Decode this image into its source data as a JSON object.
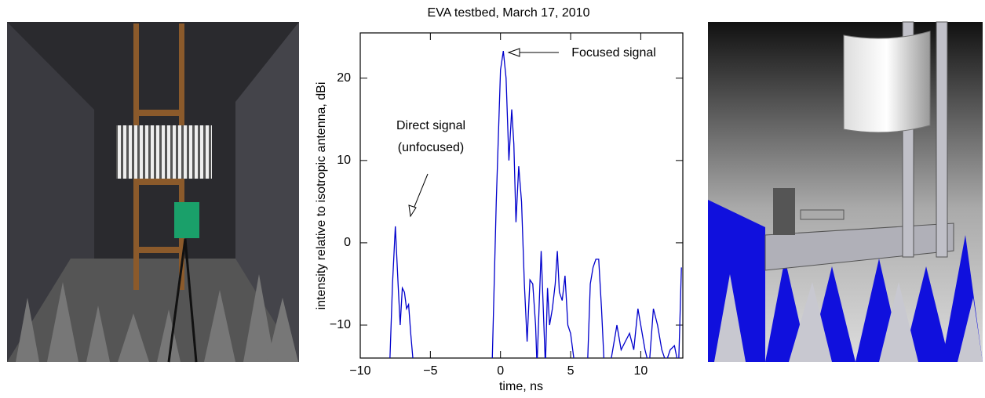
{
  "chart_data": {
    "type": "line",
    "title": "EVA testbed, March 17, 2010",
    "xlabel": "time, ns",
    "ylabel": "intensity relative to isotropic antenna, dBi",
    "annotations": [
      "Focused signal",
      "Direct signal",
      "(unfocused)"
    ],
    "x": [
      -7.9,
      -7.7,
      -7.5,
      -7.3,
      -7.15,
      -7.0,
      -6.85,
      -6.7,
      -6.55,
      -6.4,
      -6.2,
      null,
      -0.6,
      -0.3,
      0,
      0.2,
      0.4,
      0.6,
      0.8,
      0.95,
      1.1,
      1.3,
      1.5,
      1.7,
      1.9,
      2.1,
      2.3,
      2.5,
      2.6,
      2.75,
      2.9,
      3.05,
      3.2,
      3.35,
      3.5,
      3.7,
      3.9,
      4.05,
      4.2,
      4.4,
      4.6,
      4.8,
      5.0,
      5.3,
      5.6,
      5.9,
      6.2,
      6.4,
      6.6,
      6.8,
      7.0,
      7.2,
      7.4,
      7.6,
      7.8,
      8.0,
      8.3,
      8.6,
      8.9,
      9.2,
      9.5,
      9.8,
      10.0,
      10.3,
      10.6,
      10.9,
      11.2,
      11.5,
      11.8,
      12.1,
      12.4,
      12.7,
      12.9
    ],
    "series": [
      {
        "color": "#0000cc",
        "values": [
          -15,
          -5,
          2,
          -5,
          -10,
          -5.5,
          -6,
          -8,
          -7.5,
          -11,
          -15,
          null,
          -15,
          5,
          21,
          23.3,
          20,
          10,
          16.2,
          12,
          2.5,
          9.3,
          5,
          -5,
          -12,
          -4.5,
          -5,
          -10,
          -15,
          -8,
          -1,
          -8,
          -15,
          -5.5,
          -10,
          -8,
          -5,
          -1,
          -6,
          -7,
          -4,
          -10,
          -11,
          -15,
          -15,
          -15,
          -15,
          -5,
          -3,
          -2,
          -2,
          -8,
          -15,
          -15,
          -15,
          -13,
          -10,
          -13,
          -12,
          -11,
          -13,
          -8,
          -10,
          -13,
          -15,
          -8,
          -10,
          -13,
          -14.5,
          -13,
          -12.5,
          -15,
          -3
        ]
      }
    ],
    "xlim": [
      -10,
      13
    ],
    "ylim": [
      -14,
      25.5
    ],
    "xticks": [
      {
        "value": -10,
        "label": "−10"
      },
      {
        "value": -5,
        "label": "−5"
      },
      0,
      5,
      10
    ],
    "yticks": [
      {
        "value": -10,
        "label": "−10"
      },
      0,
      10,
      20
    ],
    "grid": false
  }
}
